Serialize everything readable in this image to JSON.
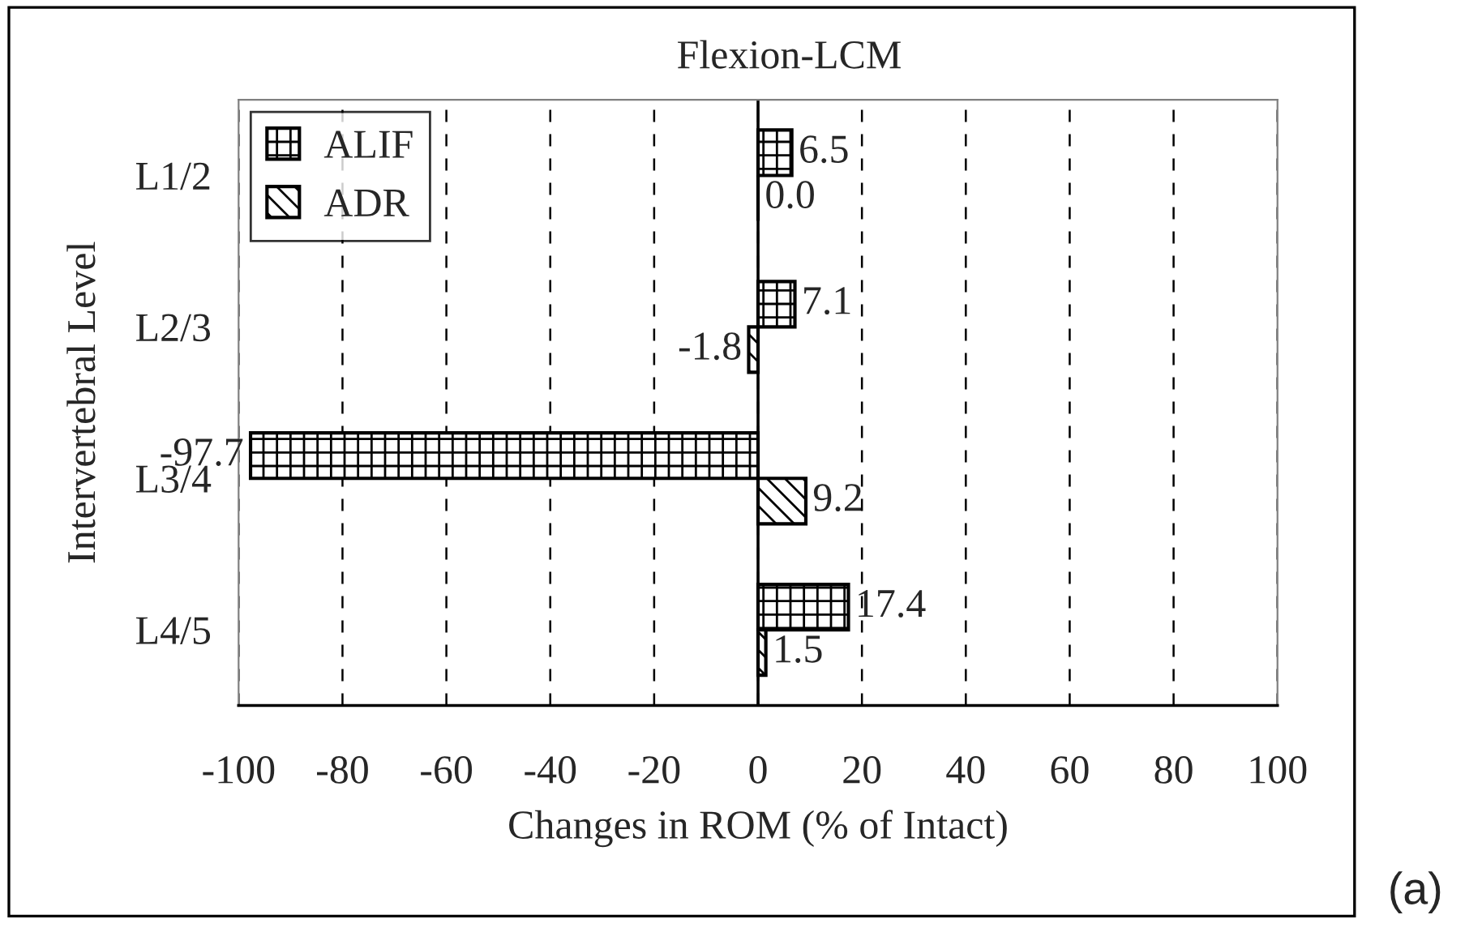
{
  "chart_data": {
    "type": "bar",
    "orientation": "horizontal",
    "title": "Flexion-LCM",
    "xlabel": "Changes in ROM (% of Intact)",
    "ylabel": "Intervertebral Level",
    "categories": [
      "L1/2",
      "L2/3",
      "L3/4",
      "L4/5"
    ],
    "series": [
      {
        "name": "ALIF",
        "color": "#000000",
        "values": [
          6.5,
          7.1,
          -97.7,
          17.4
        ],
        "value_labels": [
          "6.5",
          "7.1",
          "-97.7",
          "17.4"
        ]
      },
      {
        "name": "ADR",
        "color": "#000000",
        "values": [
          0,
          -1.8,
          9.2,
          1.5
        ],
        "value_labels": [
          "0.0",
          "-1.8",
          "9.2",
          "1.5"
        ]
      }
    ],
    "xlim": [
      -100,
      100
    ],
    "xticks": [
      -100,
      -80,
      -60,
      -40,
      -20,
      0,
      20,
      40,
      60,
      80,
      100
    ],
    "grid": "x",
    "legend": "top left",
    "ref_lines": [
      {
        "axis": "x",
        "value": 0,
        "color": "#000000",
        "line_style": "solid"
      }
    ],
    "annotations": [
      "(a)"
    ]
  }
}
